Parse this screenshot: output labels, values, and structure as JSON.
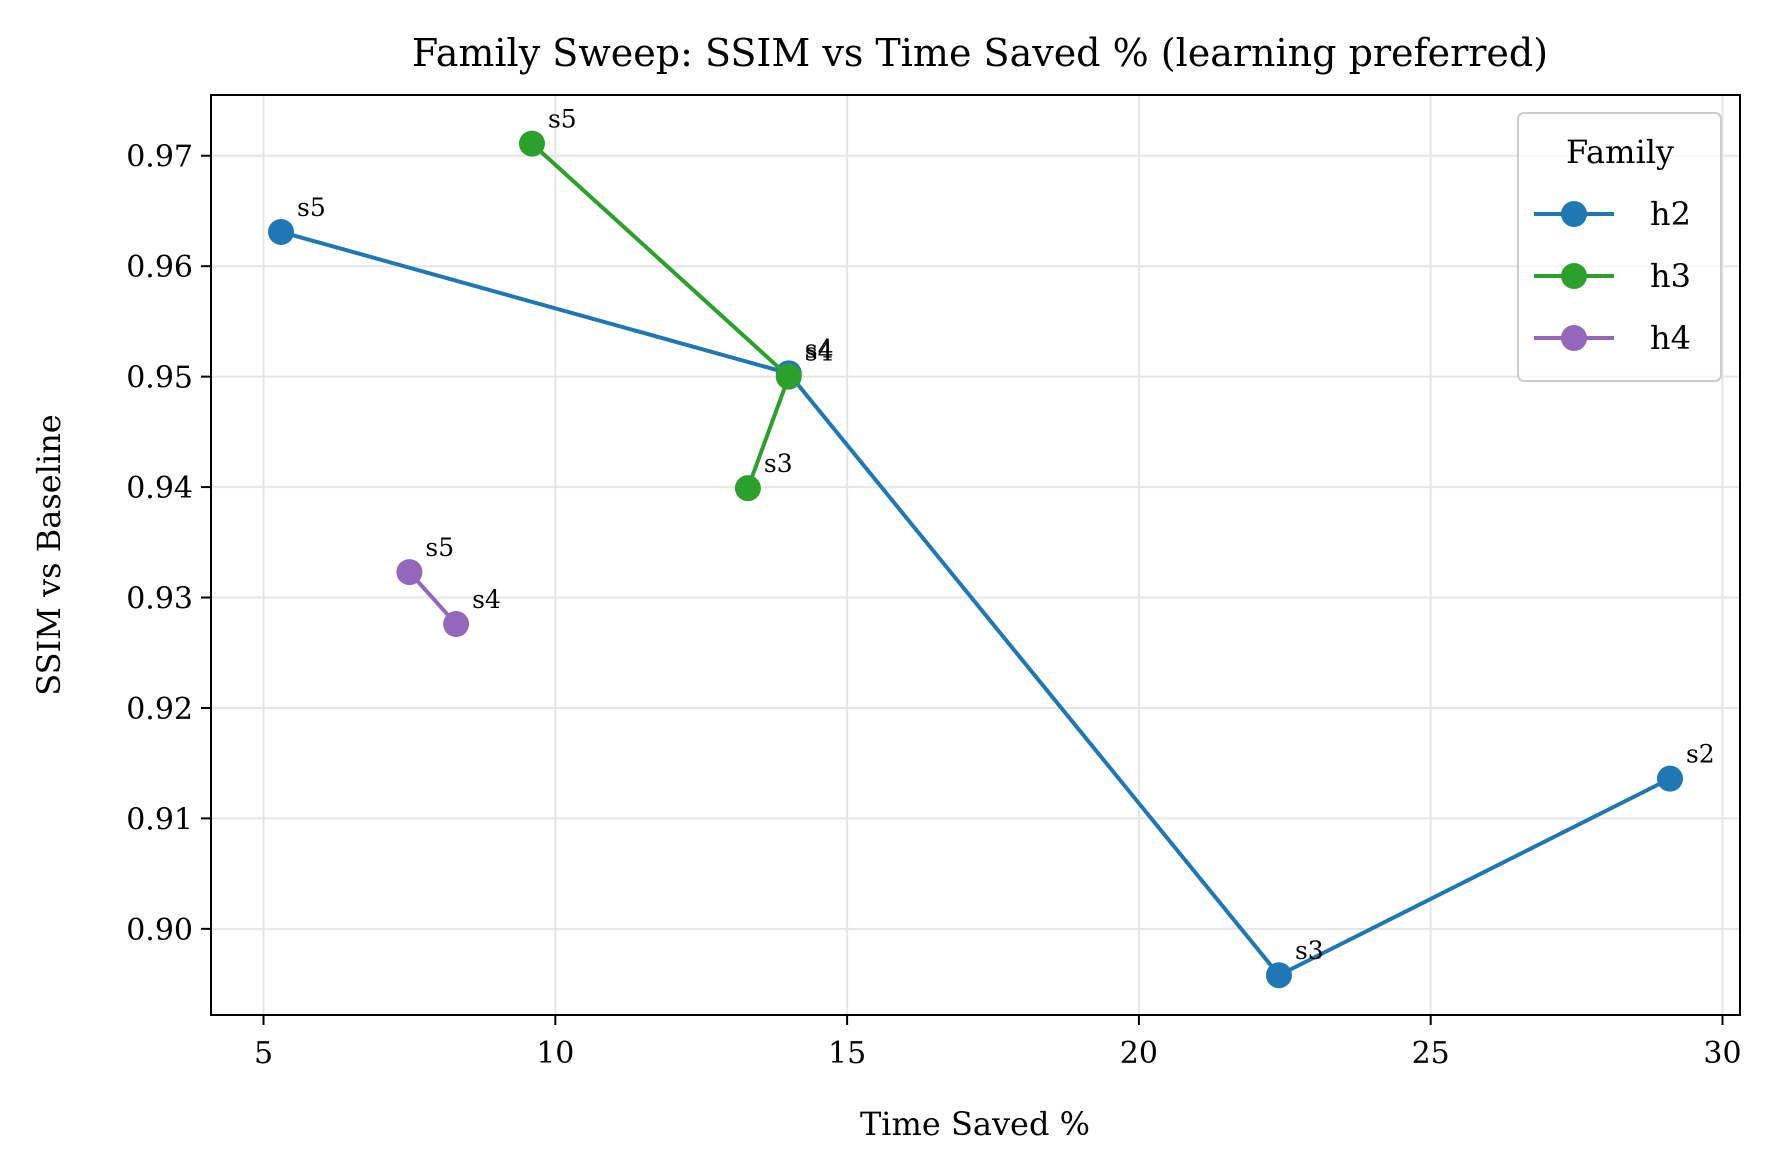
{
  "chart_data": {
    "type": "line",
    "title": "Family Sweep: SSIM vs Time Saved % (learning preferred)",
    "xlabel": "Time Saved %",
    "ylabel": "SSIM vs Baseline",
    "xlim": [
      4.1,
      30.3
    ],
    "ylim": [
      0.8922,
      0.9755
    ],
    "xticks": [
      5,
      10,
      15,
      20,
      25,
      30
    ],
    "xtick_labels": [
      "5",
      "10",
      "15",
      "20",
      "25",
      "30"
    ],
    "yticks": [
      0.9,
      0.91,
      0.92,
      0.93,
      0.94,
      0.95,
      0.96,
      0.97
    ],
    "ytick_labels": [
      "0.90",
      "0.91",
      "0.92",
      "0.93",
      "0.94",
      "0.95",
      "0.96",
      "0.97"
    ],
    "grid": true,
    "legend": {
      "title": "Family",
      "placement": "top-right"
    },
    "series": [
      {
        "name": "h2",
        "color": "#1f77b4",
        "points": [
          {
            "x": 5.3,
            "y": 0.9631,
            "label": "s5"
          },
          {
            "x": 14.0,
            "y": 0.9503,
            "label": "s4"
          },
          {
            "x": 22.4,
            "y": 0.8958,
            "label": "s3"
          },
          {
            "x": 29.1,
            "y": 0.9136,
            "label": "s2"
          }
        ]
      },
      {
        "name": "h3",
        "color": "#2ca02c",
        "points": [
          {
            "x": 9.6,
            "y": 0.9711,
            "label": "s5"
          },
          {
            "x": 14.0,
            "y": 0.95,
            "label": "s4"
          },
          {
            "x": 13.3,
            "y": 0.9399,
            "label": "s3"
          }
        ]
      },
      {
        "name": "h4",
        "color": "#9467bd",
        "points": [
          {
            "x": 7.5,
            "y": 0.9323,
            "label": "s5"
          },
          {
            "x": 8.3,
            "y": 0.9276,
            "label": "s4"
          }
        ]
      }
    ]
  }
}
